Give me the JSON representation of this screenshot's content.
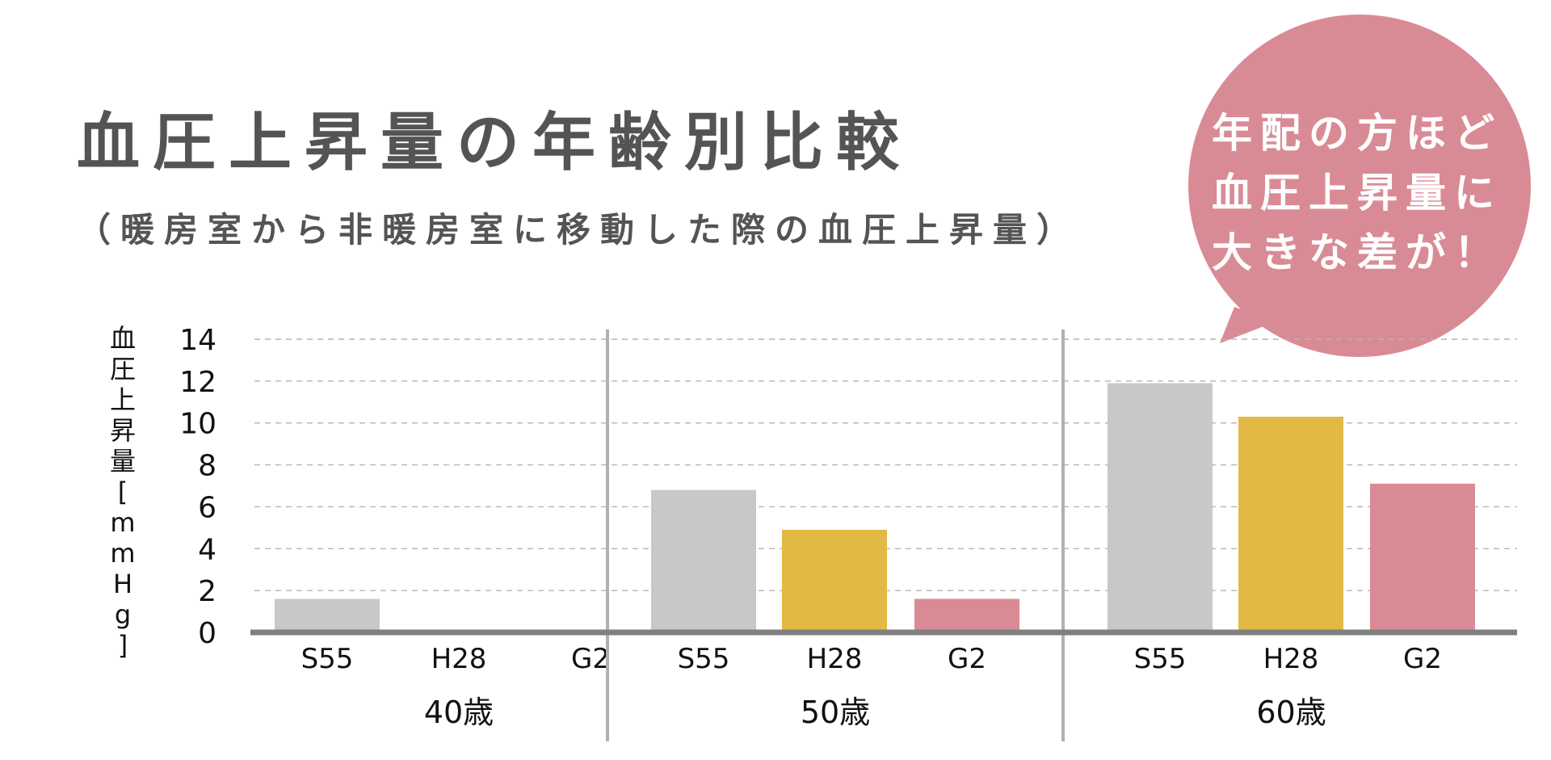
{
  "title": "血圧上昇量の年齢別比較",
  "subtitle": "（暖房室から非暖房室に移動した際の血圧上昇量）",
  "callout": {
    "lines": [
      "年配の方ほど",
      "血圧上昇量に",
      "大きな差が！"
    ],
    "color": "#d98b95"
  },
  "chart_data": {
    "type": "bar",
    "ylabel": "血圧上昇量[mmHg]",
    "ylim": [
      0,
      14
    ],
    "yticks": [
      0,
      2,
      4,
      6,
      8,
      10,
      12,
      14
    ],
    "grid": true,
    "groups": [
      "40歳",
      "50歳",
      "60歳"
    ],
    "categories": [
      "S55",
      "H28",
      "G2"
    ],
    "series": [
      {
        "name": "S55",
        "color": "#c8c8c8",
        "values": [
          1.6,
          6.8,
          11.9
        ]
      },
      {
        "name": "H28",
        "color": "#e3b945",
        "values": [
          0,
          4.9,
          10.3
        ]
      },
      {
        "name": "G2",
        "color": "#d98b95",
        "values": [
          0,
          1.6,
          7.1
        ]
      }
    ]
  }
}
